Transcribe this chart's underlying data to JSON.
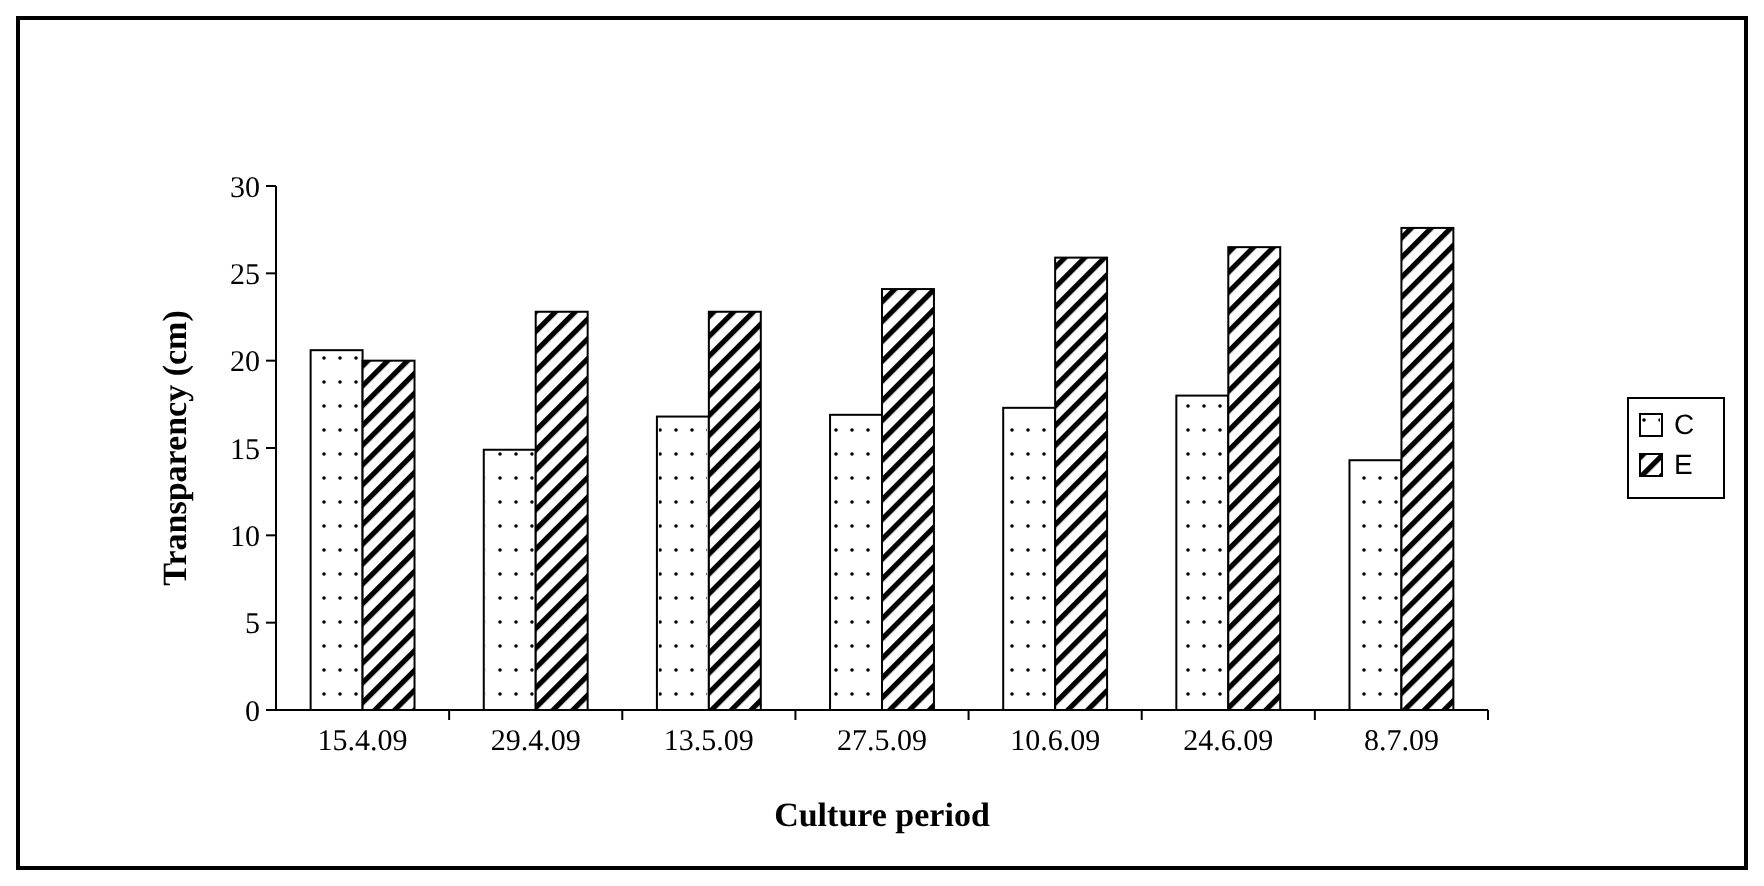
{
  "chart_data": {
    "type": "bar",
    "xlabel": "Culture period",
    "ylabel": "Transparency (cm)",
    "categories": [
      "15.4.09",
      "29.4.09",
      "13.5.09",
      "27.5.09",
      "10.6.09",
      "24.6.09",
      "8.7.09"
    ],
    "series": [
      {
        "name": "C",
        "color": "#ffffff",
        "values": [
          20.6,
          14.9,
          16.8,
          16.9,
          17.3,
          18.0,
          14.3
        ]
      },
      {
        "name": "E",
        "color": "#000000",
        "values": [
          20.0,
          22.8,
          22.8,
          24.1,
          25.9,
          26.5,
          27.6
        ]
      }
    ],
    "ylim": [
      0,
      30
    ],
    "yticks": [
      0,
      5,
      10,
      15,
      20,
      25,
      30
    ],
    "grid": false,
    "legend": "right"
  }
}
